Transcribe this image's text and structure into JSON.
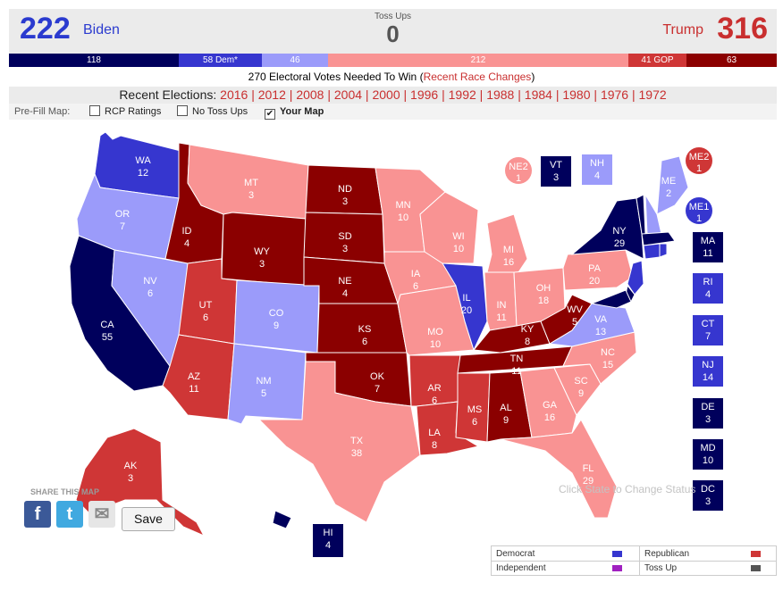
{
  "totals": {
    "biden_count": "222",
    "biden_name": "Biden",
    "trump_count": "316",
    "trump_name": "Trump",
    "tossups_label": "Toss Ups",
    "tossups_count": "0"
  },
  "bar": {
    "solid_dem": "118",
    "likely_dem": "58 Dem*",
    "lean_dem": "46",
    "lean_gop": "212",
    "likely_gop": "41 GOP",
    "solid_gop": "63"
  },
  "needed_text": "270 Electoral Votes Needed To Win (",
  "needed_link": "Recent Race Changes",
  "needed_close": ")",
  "recent": {
    "label": "Recent Elections:",
    "years": [
      "2016",
      "2012",
      "2008",
      "2004",
      "2000",
      "1996",
      "1992",
      "1988",
      "1984",
      "1980",
      "1976",
      "1972"
    ]
  },
  "prefill": {
    "label": "Pre-Fill Map:",
    "options": [
      {
        "label": "RCP Ratings",
        "checked": false
      },
      {
        "label": "No Toss Ups",
        "checked": false
      },
      {
        "label": "Your Map",
        "checked": true
      }
    ],
    "checkmark": "✔"
  },
  "colors": {
    "solid_dem": "#00005c",
    "likely_dem": "#3636cf",
    "lean_dem": "#9b9bfa",
    "lean_gop": "#f99393",
    "likely_gop": "#cf3636",
    "solid_gop": "#8b0000"
  },
  "states": [
    {
      "abbr": "WA",
      "ev": "12",
      "rating": "likely_dem"
    },
    {
      "abbr": "OR",
      "ev": "7",
      "rating": "lean_dem"
    },
    {
      "abbr": "CA",
      "ev": "55",
      "rating": "solid_dem"
    },
    {
      "abbr": "NV",
      "ev": "6",
      "rating": "lean_dem"
    },
    {
      "abbr": "ID",
      "ev": "4",
      "rating": "solid_gop"
    },
    {
      "abbr": "MT",
      "ev": "3",
      "rating": "lean_gop"
    },
    {
      "abbr": "WY",
      "ev": "3",
      "rating": "solid_gop"
    },
    {
      "abbr": "UT",
      "ev": "6",
      "rating": "likely_gop"
    },
    {
      "abbr": "AZ",
      "ev": "11",
      "rating": "likely_gop"
    },
    {
      "abbr": "CO",
      "ev": "9",
      "rating": "lean_dem"
    },
    {
      "abbr": "NM",
      "ev": "5",
      "rating": "lean_dem"
    },
    {
      "abbr": "ND",
      "ev": "3",
      "rating": "solid_gop"
    },
    {
      "abbr": "SD",
      "ev": "3",
      "rating": "solid_gop"
    },
    {
      "abbr": "NE",
      "ev": "4",
      "rating": "solid_gop"
    },
    {
      "abbr": "KS",
      "ev": "6",
      "rating": "solid_gop"
    },
    {
      "abbr": "OK",
      "ev": "7",
      "rating": "solid_gop"
    },
    {
      "abbr": "TX",
      "ev": "38",
      "rating": "lean_gop"
    },
    {
      "abbr": "MN",
      "ev": "10",
      "rating": "lean_gop"
    },
    {
      "abbr": "IA",
      "ev": "6",
      "rating": "lean_gop"
    },
    {
      "abbr": "MO",
      "ev": "10",
      "rating": "lean_gop"
    },
    {
      "abbr": "AR",
      "ev": "6",
      "rating": "likely_gop"
    },
    {
      "abbr": "LA",
      "ev": "8",
      "rating": "likely_gop"
    },
    {
      "abbr": "WI",
      "ev": "10",
      "rating": "lean_gop"
    },
    {
      "abbr": "IL",
      "ev": "20",
      "rating": "likely_dem"
    },
    {
      "abbr": "MI",
      "ev": "16",
      "rating": "lean_gop"
    },
    {
      "abbr": "IN",
      "ev": "11",
      "rating": "lean_gop"
    },
    {
      "abbr": "OH",
      "ev": "18",
      "rating": "lean_gop"
    },
    {
      "abbr": "KY",
      "ev": "8",
      "rating": "solid_gop"
    },
    {
      "abbr": "TN",
      "ev": "11",
      "rating": "solid_gop"
    },
    {
      "abbr": "MS",
      "ev": "6",
      "rating": "likely_gop"
    },
    {
      "abbr": "AL",
      "ev": "9",
      "rating": "solid_gop"
    },
    {
      "abbr": "GA",
      "ev": "16",
      "rating": "lean_gop"
    },
    {
      "abbr": "FL",
      "ev": "29",
      "rating": "lean_gop"
    },
    {
      "abbr": "SC",
      "ev": "9",
      "rating": "lean_gop"
    },
    {
      "abbr": "NC",
      "ev": "15",
      "rating": "lean_gop"
    },
    {
      "abbr": "VA",
      "ev": "13",
      "rating": "lean_dem"
    },
    {
      "abbr": "WV",
      "ev": "5",
      "rating": "solid_gop"
    },
    {
      "abbr": "PA",
      "ev": "20",
      "rating": "lean_gop"
    },
    {
      "abbr": "NY",
      "ev": "29",
      "rating": "solid_dem"
    },
    {
      "abbr": "ME",
      "ev": "2",
      "rating": "lean_dem"
    },
    {
      "abbr": "AK",
      "ev": "3",
      "rating": "likely_gop"
    }
  ],
  "circles": [
    {
      "abbr": "NE2",
      "ev": "1",
      "rating": "lean_gop"
    },
    {
      "abbr": "ME2",
      "ev": "1",
      "rating": "likely_gop"
    },
    {
      "abbr": "ME1",
      "ev": "1",
      "rating": "likely_dem"
    }
  ],
  "boxes": [
    {
      "abbr": "VT",
      "ev": "3",
      "rating": "solid_dem"
    },
    {
      "abbr": "NH",
      "ev": "4",
      "rating": "lean_dem"
    },
    {
      "abbr": "MA",
      "ev": "11",
      "rating": "solid_dem"
    },
    {
      "abbr": "RI",
      "ev": "4",
      "rating": "likely_dem"
    },
    {
      "abbr": "CT",
      "ev": "7",
      "rating": "likely_dem"
    },
    {
      "abbr": "NJ",
      "ev": "14",
      "rating": "likely_dem"
    },
    {
      "abbr": "DE",
      "ev": "3",
      "rating": "solid_dem"
    },
    {
      "abbr": "MD",
      "ev": "10",
      "rating": "solid_dem"
    },
    {
      "abbr": "DC",
      "ev": "3",
      "rating": "solid_dem"
    },
    {
      "abbr": "HI",
      "ev": "4",
      "rating": "solid_dem"
    }
  ],
  "share": {
    "label": "SHARE THIS MAP",
    "facebook_glyph": "f",
    "twitter_glyph": "t",
    "email_glyph": "✉",
    "save_label": "Save"
  },
  "hint": "Click State to Change Status",
  "legend": {
    "democrat": "Democrat",
    "republican": "Republican",
    "independent": "Independent",
    "tossup": "Toss Up",
    "democrat_color": "#3636cf",
    "republican_color": "#cf3636",
    "independent_color": "#a020c0",
    "tossup_color": "#555555"
  }
}
